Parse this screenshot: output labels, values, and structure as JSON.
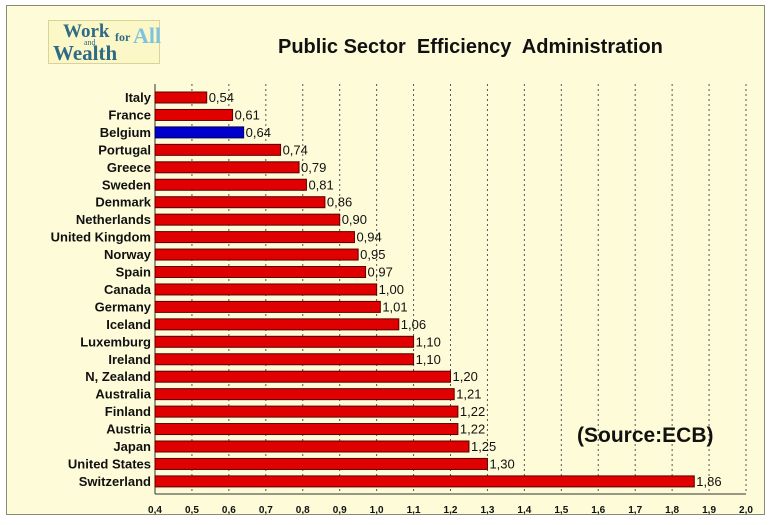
{
  "logo": {
    "line1": "Work",
    "small": "and",
    "line2": "Wealth",
    "for": "for",
    "all": "All"
  },
  "source_note": "(Source:ECB)",
  "chart_data": {
    "type": "bar",
    "orientation": "horizontal",
    "title": "Public Sector  Efficiency  Administration",
    "categories": [
      "Italy",
      "France",
      "Belgium",
      "Portugal",
      "Greece",
      "Sweden",
      "Denmark",
      "Netherlands",
      "United Kingdom",
      "Norway",
      "Spain",
      "Canada",
      "Germany",
      "Iceland",
      "Luxemburg",
      "Ireland",
      "N, Zealand",
      "Australia",
      "Finland",
      "Austria",
      "Japan",
      "United States",
      "Switzerland"
    ],
    "values": [
      0.54,
      0.61,
      0.64,
      0.74,
      0.79,
      0.81,
      0.86,
      0.9,
      0.94,
      0.95,
      0.97,
      1.0,
      1.01,
      1.06,
      1.1,
      1.1,
      1.2,
      1.21,
      1.22,
      1.22,
      1.25,
      1.3,
      1.86
    ],
    "value_labels": [
      "0,54",
      "0,61",
      "0,64",
      "0,74",
      "0,79",
      "0,81",
      "0,86",
      "0,90",
      "0,94",
      "0,95",
      "0,97",
      "1,00",
      "1,01",
      "1,06",
      "1,10",
      "1,10",
      "1,20",
      "1,21",
      "1,22",
      "1,22",
      "1,25",
      "1,30",
      "1,86"
    ],
    "xlim": [
      0.4,
      2.0
    ],
    "x_ticks": [
      0.4,
      0.5,
      0.6,
      0.7,
      0.8,
      0.9,
      1.0,
      1.1,
      1.2,
      1.3,
      1.4,
      1.5,
      1.6,
      1.7,
      1.8,
      1.9,
      2.0
    ],
    "x_tick_labels": [
      "0,4",
      "0,5",
      "0,6",
      "0,7",
      "0,8",
      "0,9",
      "1,0",
      "1,1",
      "1,2",
      "1,3",
      "1,4",
      "1,5",
      "1,6",
      "1,7",
      "1,8",
      "1,9",
      "2,0"
    ],
    "grid": "vertical dotted",
    "colors": {
      "default": "#e00000",
      "highlight": "#0000cc",
      "bar_edge": "#5a0000",
      "highlight_edge": "#000055"
    },
    "highlight": "Belgium"
  }
}
